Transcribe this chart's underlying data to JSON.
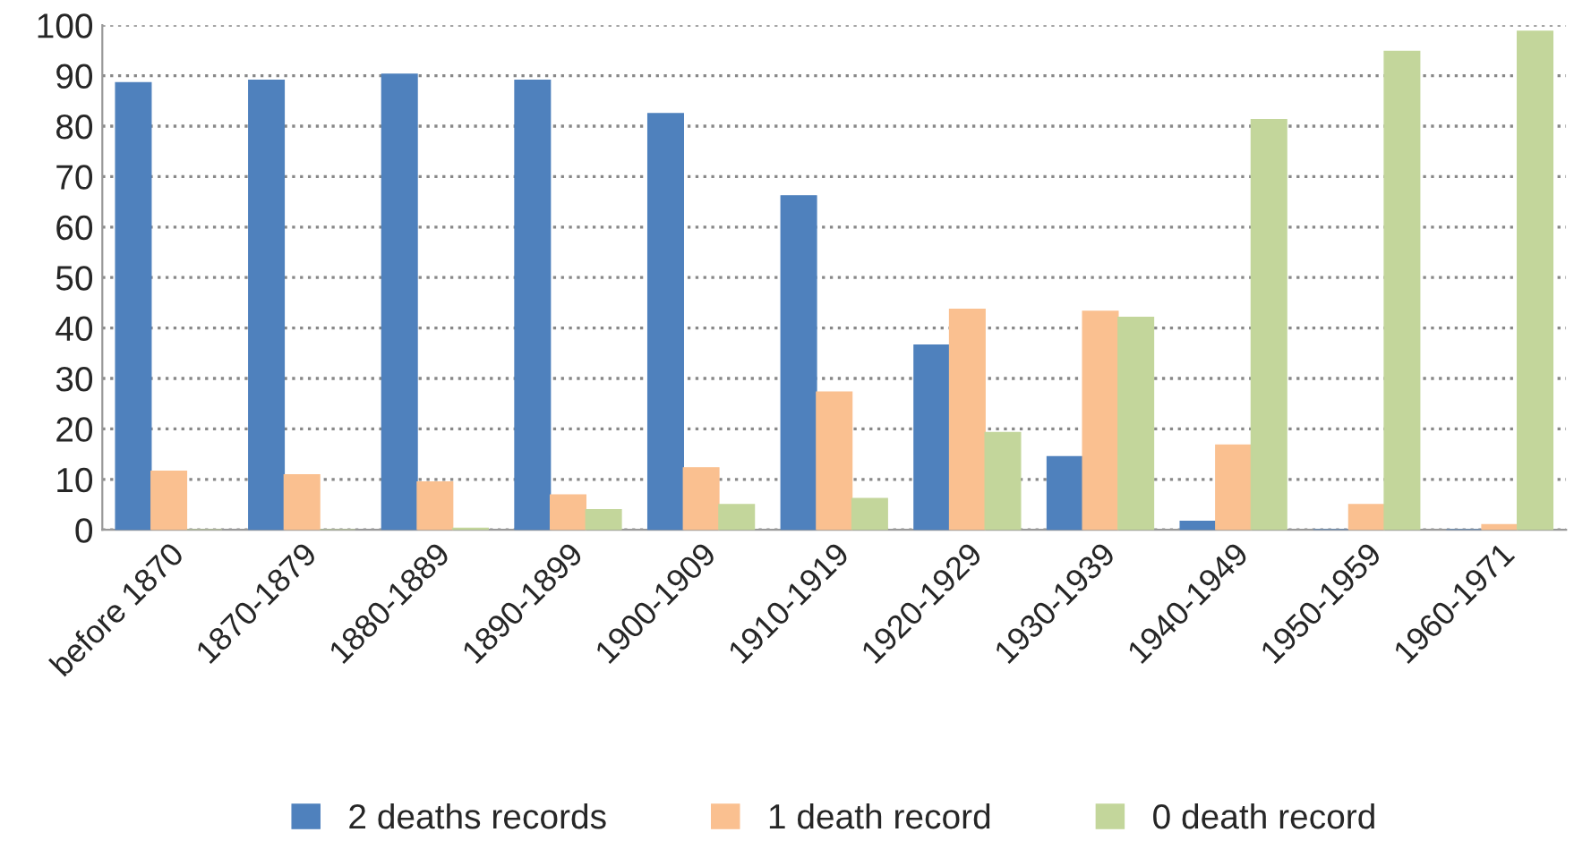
{
  "chart_data": {
    "type": "bar",
    "categories": [
      "before 1870",
      "1870-1879",
      "1880-1889",
      "1890-1899",
      "1900-1909",
      "1910-1919",
      "1920-1929",
      "1930-1939",
      "1940-1949",
      "1950-1959",
      "1960-1971"
    ],
    "series": [
      {
        "name": "2 deaths records",
        "color": "#4f81bd",
        "values": [
          88.6,
          89.1,
          90.3,
          89.1,
          82.5,
          66.2,
          36.6,
          14.5,
          1.7,
          0,
          0
        ]
      },
      {
        "name": "1 death record",
        "color": "#fac090",
        "values": [
          11.6,
          10.9,
          9.5,
          6.9,
          12.3,
          27.3,
          43.7,
          43.3,
          16.8,
          5.0,
          1.0
        ]
      },
      {
        "name": "0 death record",
        "color": "#c3d69b",
        "values": [
          0,
          0,
          0.3,
          4.0,
          5.0,
          6.2,
          19.3,
          42.1,
          81.3,
          94.8,
          98.8
        ]
      }
    ],
    "ylim": [
      0,
      100
    ],
    "yticks": [
      0,
      10,
      20,
      30,
      40,
      50,
      60,
      70,
      80,
      90,
      100
    ],
    "grid": "y",
    "legend": "bottom"
  }
}
